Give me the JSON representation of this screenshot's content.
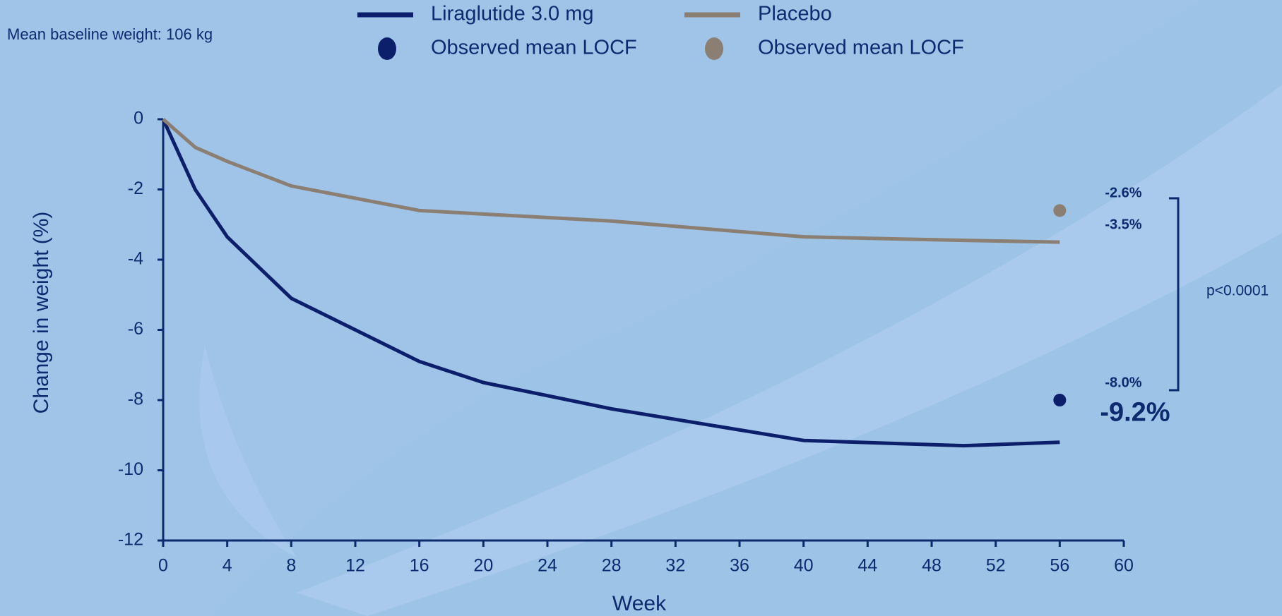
{
  "chart_data": {
    "type": "line",
    "subtitle": "Mean baseline weight: 106 kg",
    "x_label": "Week",
    "y_label": "Change in weight (%)",
    "xlim": [
      0,
      60
    ],
    "xticks": [
      0,
      4,
      8,
      12,
      16,
      20,
      24,
      28,
      32,
      36,
      40,
      44,
      48,
      52,
      56,
      60
    ],
    "ylim": [
      -12,
      0
    ],
    "yticks": [
      0,
      -2,
      -4,
      -6,
      -8,
      -10,
      -12
    ],
    "annotation": "p<0.0001",
    "series": [
      {
        "name": "Liraglutide 3.0 mg",
        "type": "line",
        "color": "#0b1f6b",
        "x": [
          0,
          2,
          4,
          8,
          16,
          20,
          28,
          40,
          50,
          56
        ],
        "values": [
          0,
          -2.0,
          -3.35,
          -5.1,
          -6.9,
          -7.5,
          -8.25,
          -9.15,
          -9.3,
          -9.2
        ],
        "value_labels": [
          null,
          null,
          null,
          null,
          null,
          null,
          null,
          null,
          null,
          "-9.2%"
        ]
      },
      {
        "name": "Placebo",
        "type": "line",
        "color": "#8a7f72",
        "x": [
          0,
          2,
          4,
          8,
          16,
          20,
          28,
          40,
          50,
          56
        ],
        "values": [
          0,
          -0.8,
          -1.2,
          -1.9,
          -2.6,
          -2.7,
          -2.9,
          -3.35,
          -3.45,
          -3.5
        ],
        "value_labels": [
          null,
          null,
          null,
          null,
          null,
          null,
          null,
          null,
          null,
          "-3.5%"
        ]
      },
      {
        "name": "Observed mean LOCF",
        "type": "scatter",
        "color": "#0b1f6b",
        "x": [
          56
        ],
        "values": [
          -8.0
        ],
        "value_labels": [
          "-8.0%"
        ]
      },
      {
        "name": "Observed mean LOCF",
        "type": "scatter",
        "color": "#8a7f72",
        "x": [
          56
        ],
        "values": [
          -2.6
        ],
        "value_labels": [
          "-2.6%"
        ]
      }
    ]
  }
}
